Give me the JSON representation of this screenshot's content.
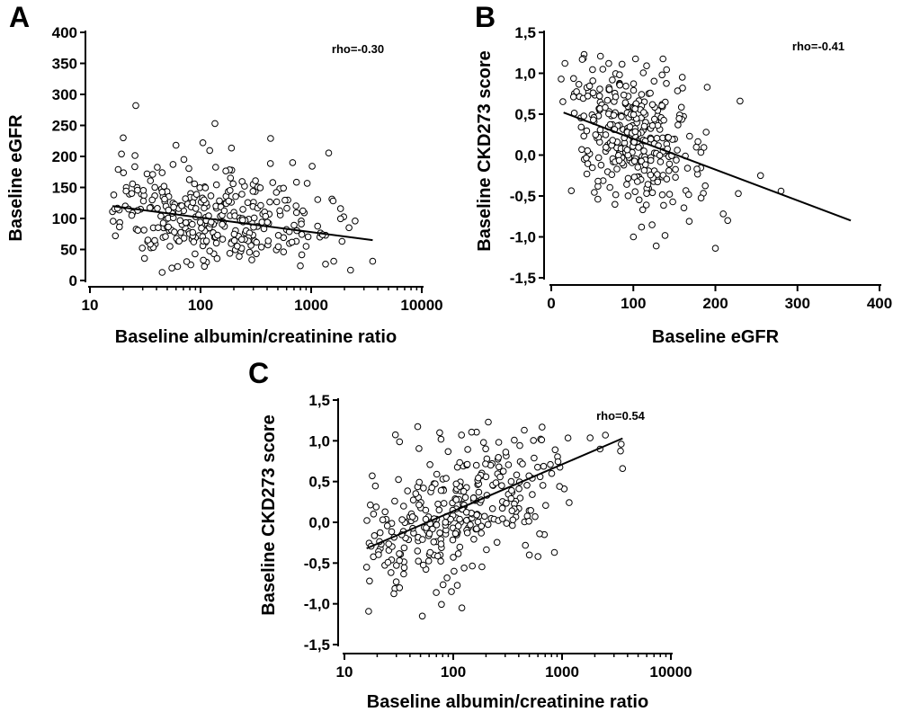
{
  "chart_data": [
    {
      "panel": "A",
      "type": "scatter",
      "xlabel": "Baseline albumin/creatinine ratio",
      "ylabel": "Baseline eGFR",
      "xscale": "log",
      "xlim": [
        10,
        10000
      ],
      "ylim": [
        0,
        400
      ],
      "xticks": [
        10,
        100,
        1000,
        10000
      ],
      "xtick_labels": [
        "10",
        "100",
        "1000",
        "10000"
      ],
      "yticks": [
        0,
        50,
        100,
        150,
        200,
        250,
        300,
        350,
        400
      ],
      "ytick_labels": [
        "0",
        "50",
        "100",
        "150",
        "200",
        "250",
        "300",
        "350",
        "400"
      ],
      "annotation": "rho=-0.30",
      "annotation_position": "top-right",
      "grid": false,
      "marker": "open circle",
      "regression": {
        "x": [
          16,
          3600
        ],
        "y": [
          120,
          65
        ]
      },
      "seed": 11,
      "n_points": 330,
      "point_model": {
        "x_log_mean": 2.08,
        "x_log_sd": 0.52,
        "x_min": 16,
        "x_max": 3600,
        "y_line": {
          "x": [
            16,
            3600
          ],
          "y": [
            120,
            65
          ]
        },
        "y_sd": 38,
        "y_min": 12,
        "y_max": 282
      },
      "points": [
        [
          26,
          282
        ],
        [
          135,
          253
        ],
        [
          430,
          229
        ],
        [
          20,
          230
        ],
        [
          105,
          222
        ],
        [
          60,
          218
        ],
        [
          680,
          190
        ],
        [
          18,
          179
        ],
        [
          250,
          152
        ],
        [
          520,
          148
        ],
        [
          2200,
          85
        ],
        [
          2500,
          96
        ],
        [
          3600,
          31
        ],
        [
          1600,
          31
        ],
        [
          45,
          13
        ],
        [
          55,
          20
        ],
        [
          16,
          111
        ],
        [
          17,
          72
        ],
        [
          1900,
          63
        ],
        [
          1200,
          70
        ]
      ]
    },
    {
      "panel": "B",
      "type": "scatter",
      "xlabel": "Baseline eGFR",
      "ylabel": "Baseline CKD273 score",
      "xlim": [
        0,
        400
      ],
      "ylim": [
        -1.5,
        1.5
      ],
      "xticks": [
        0,
        100,
        200,
        300,
        400
      ],
      "xtick_labels": [
        "0",
        "100",
        "200",
        "300",
        "400"
      ],
      "yticks": [
        -1.5,
        -1.0,
        -0.5,
        0.0,
        0.5,
        1.0,
        1.5
      ],
      "ytick_labels": [
        "-1,5",
        "-1,0",
        "-0,5",
        "0,0",
        "0,5",
        "1,0",
        "1,5"
      ],
      "annotation": "rho=-0.41",
      "annotation_position": "top-right",
      "grid": false,
      "marker": "open circle",
      "regression": {
        "x": [
          15,
          365
        ],
        "y": [
          0.52,
          -0.8
        ]
      },
      "seed": 23,
      "n_points": 330,
      "point_model": {
        "x_mean": 95,
        "x_sd": 42,
        "x_min": 12,
        "x_max": 282,
        "y_line": {
          "x": [
            15,
            365
          ],
          "y": [
            0.52,
            -0.8
          ]
        },
        "y_sd": 0.42,
        "y_min": -1.15,
        "y_max": 1.23
      },
      "points": [
        [
          12,
          0.93
        ],
        [
          280,
          -0.44
        ],
        [
          255,
          -0.25
        ],
        [
          230,
          0.66
        ],
        [
          200,
          -1.14
        ],
        [
          190,
          0.83
        ],
        [
          215,
          -0.8
        ],
        [
          40,
          1.23
        ],
        [
          70,
          1.12
        ],
        [
          100,
          -1.0
        ],
        [
          110,
          -0.88
        ],
        [
          135,
          0.98
        ],
        [
          160,
          0.82
        ],
        [
          228,
          -0.47
        ]
      ]
    },
    {
      "panel": "C",
      "type": "scatter",
      "xlabel": "Baseline albumin/creatinine ratio",
      "ylabel": "Baseline CKD273 score",
      "xscale": "log",
      "xlim": [
        10,
        10000
      ],
      "ylim": [
        -1.5,
        1.5
      ],
      "xticks": [
        10,
        100,
        1000,
        10000
      ],
      "xtick_labels": [
        "10",
        "100",
        "1000",
        "10000"
      ],
      "yticks": [
        -1.5,
        -1.0,
        -0.5,
        0.0,
        0.5,
        1.0,
        1.5
      ],
      "ytick_labels": [
        "-1,5",
        "-1,0",
        "-0,5",
        "0,0",
        "0,5",
        "1,0",
        "1,5"
      ],
      "annotation": "rho=0.54",
      "annotation_position": "top-right",
      "grid": false,
      "marker": "open circle",
      "regression": {
        "x": [
          16,
          3600
        ],
        "y": [
          -0.32,
          1.03
        ]
      },
      "seed": 37,
      "n_points": 330,
      "point_model": {
        "x_log_mean": 2.08,
        "x_log_sd": 0.52,
        "x_min": 16,
        "x_max": 3600,
        "y_line": {
          "x": [
            16,
            3600
          ],
          "y": [
            -0.32,
            1.03
          ]
        },
        "y_sd": 0.4,
        "y_min": -1.15,
        "y_max": 1.23
      },
      "points": [
        [
          16,
          -0.55
        ],
        [
          17,
          -0.72
        ],
        [
          52,
          -1.15
        ],
        [
          210,
          1.23
        ],
        [
          3600,
          0.66
        ],
        [
          3500,
          0.96
        ],
        [
          2500,
          1.07
        ],
        [
          450,
          1.13
        ],
        [
          75,
          1.1
        ],
        [
          120,
          -1.05
        ],
        [
          600,
          -0.42
        ],
        [
          850,
          -0.37
        ],
        [
          500,
          -0.4
        ],
        [
          18,
          0.57
        ]
      ]
    }
  ]
}
